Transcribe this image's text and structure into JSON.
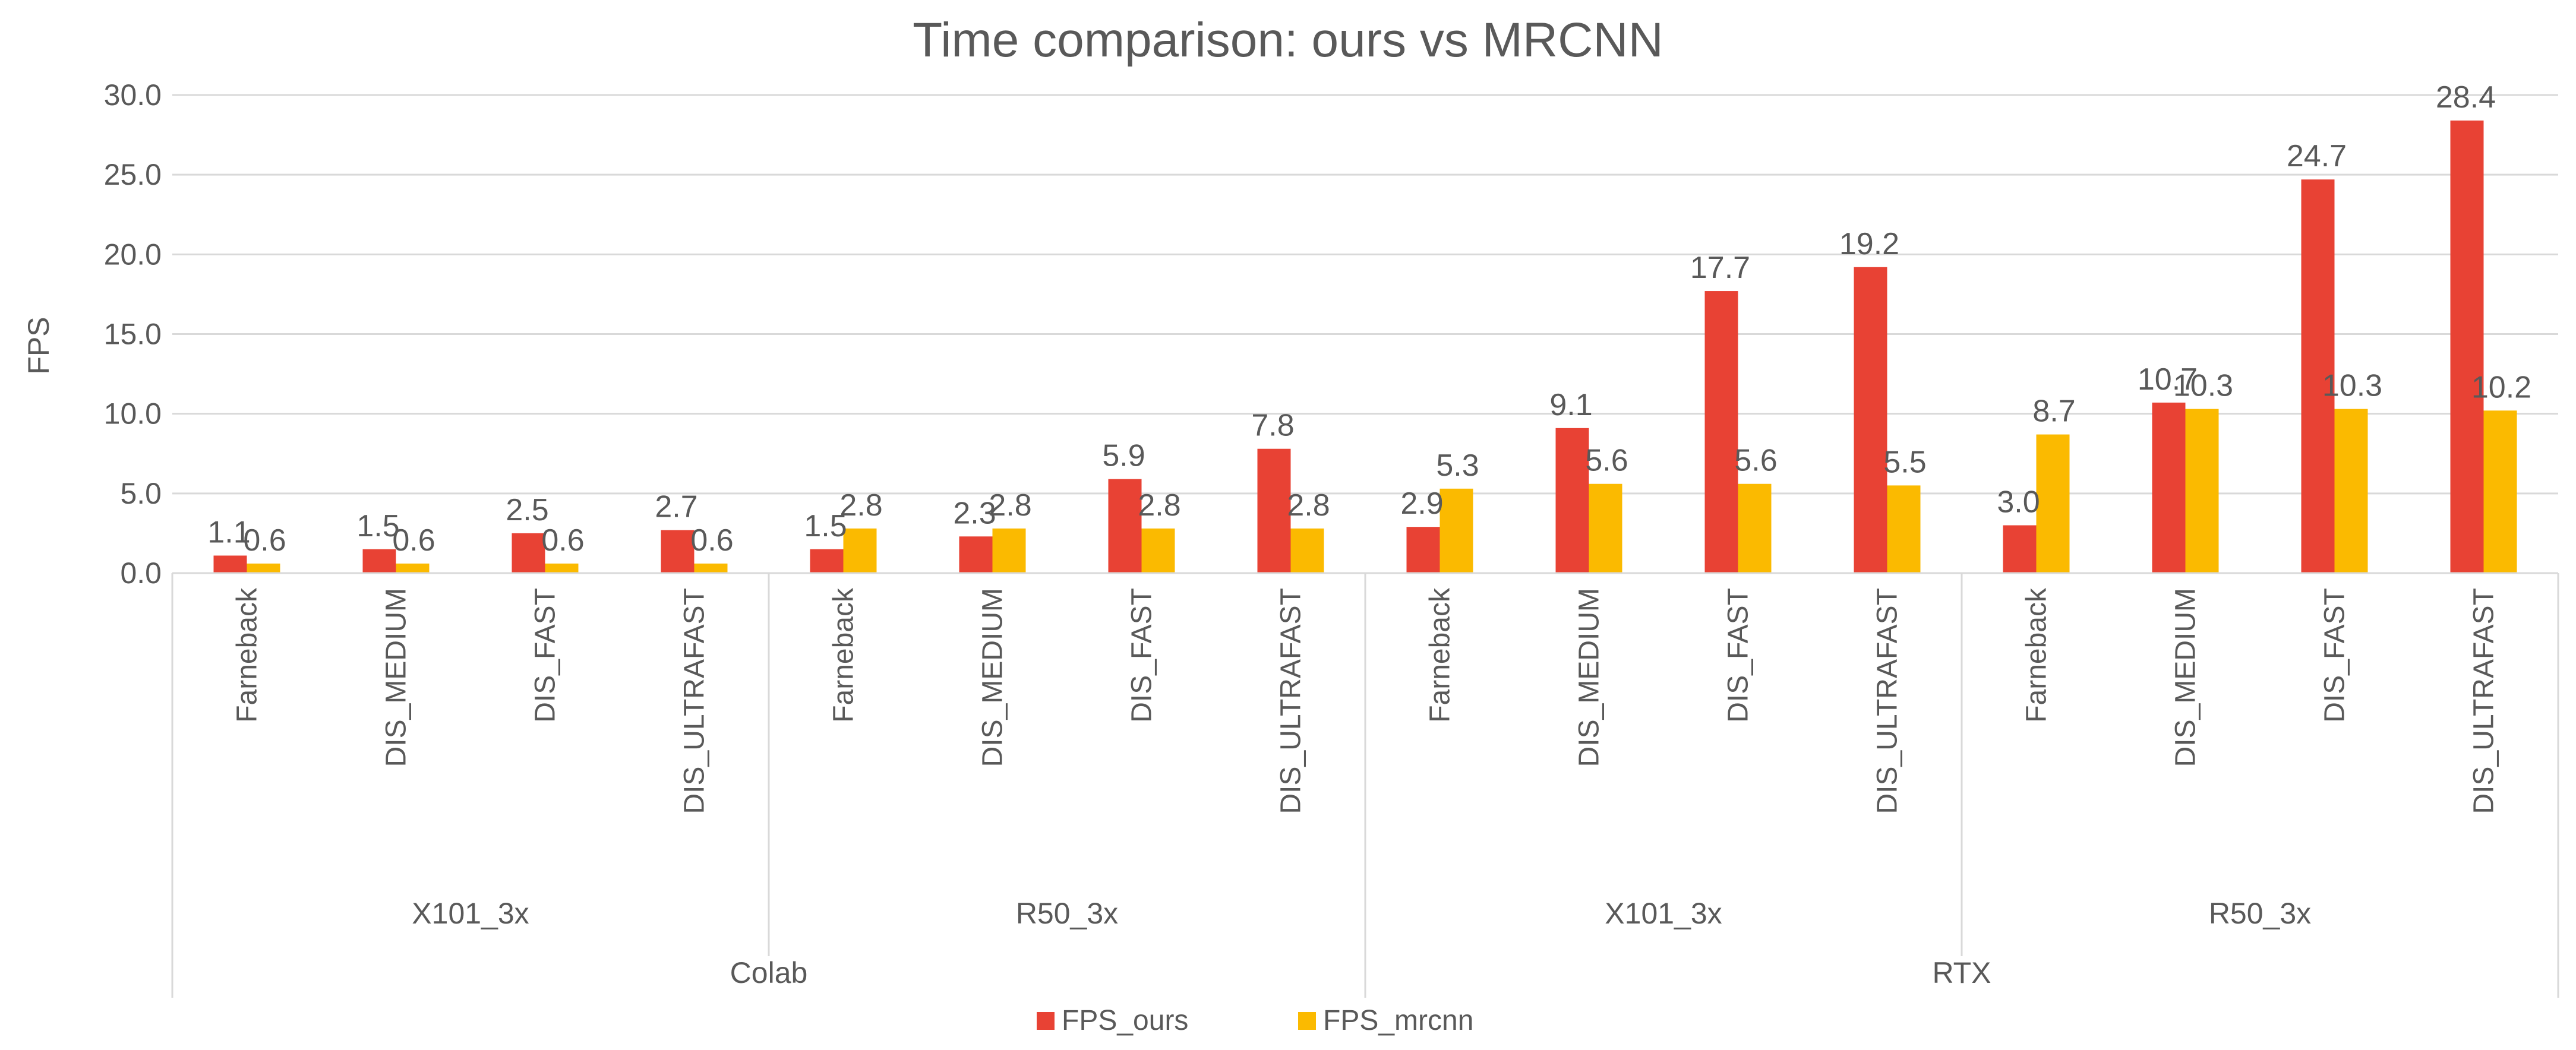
{
  "chart_data": {
    "type": "bar",
    "title": "Time comparison: ours vs MRCNN",
    "xlabel": "",
    "ylabel": "FPS",
    "ylim": [
      0,
      30
    ],
    "yticks": [
      "0.0",
      "5.0",
      "10.0",
      "15.0",
      "20.0",
      "25.0",
      "30.0"
    ],
    "grid": true,
    "legend_position": "bottom",
    "categories": [
      "Farneback",
      "DIS_MEDIUM",
      "DIS_FAST",
      "DIS_ULTRAFAST",
      "Farneback",
      "DIS_MEDIUM",
      "DIS_FAST",
      "DIS_ULTRAFAST",
      "Farneback",
      "DIS_MEDIUM",
      "DIS_FAST",
      "DIS_ULTRAFAST",
      "Farneback",
      "DIS_MEDIUM",
      "DIS_FAST",
      "DIS_ULTRAFAST"
    ],
    "model_groups": [
      {
        "label": "X101_3x",
        "span": 4
      },
      {
        "label": "R50_3x",
        "span": 4
      },
      {
        "label": "X101_3x",
        "span": 4
      },
      {
        "label": "R50_3x",
        "span": 4
      }
    ],
    "platform_groups": [
      {
        "label": "Colab",
        "span": 8
      },
      {
        "label": "RTX",
        "span": 8
      }
    ],
    "series": [
      {
        "name": "FPS_ours",
        "color": "#E84234",
        "values": [
          1.1,
          1.5,
          2.5,
          2.7,
          1.5,
          2.3,
          5.9,
          7.8,
          2.9,
          9.1,
          17.7,
          19.2,
          3.0,
          10.7,
          24.7,
          28.4
        ],
        "labels": [
          "1.1",
          "1.5",
          "2.5",
          "2.7",
          "1.5",
          "2.3",
          "5.9",
          "7.8",
          "2.9",
          "9.1",
          "17.7",
          "19.2",
          "3.0",
          "10.7",
          "24.7",
          "28.4"
        ]
      },
      {
        "name": "FPS_mrcnn",
        "color": "#FBBA00",
        "values": [
          0.6,
          0.6,
          0.6,
          0.6,
          2.8,
          2.8,
          2.8,
          2.8,
          5.3,
          5.6,
          5.6,
          5.5,
          8.7,
          10.3,
          10.3,
          10.2
        ],
        "labels": [
          "0.6",
          "0.6",
          "0.6",
          "0.6",
          "2.8",
          "2.8",
          "2.8",
          "2.8",
          "5.3",
          "5.6",
          "5.6",
          "5.5",
          "8.7",
          "10.3",
          "10.3",
          "10.2"
        ]
      }
    ]
  }
}
